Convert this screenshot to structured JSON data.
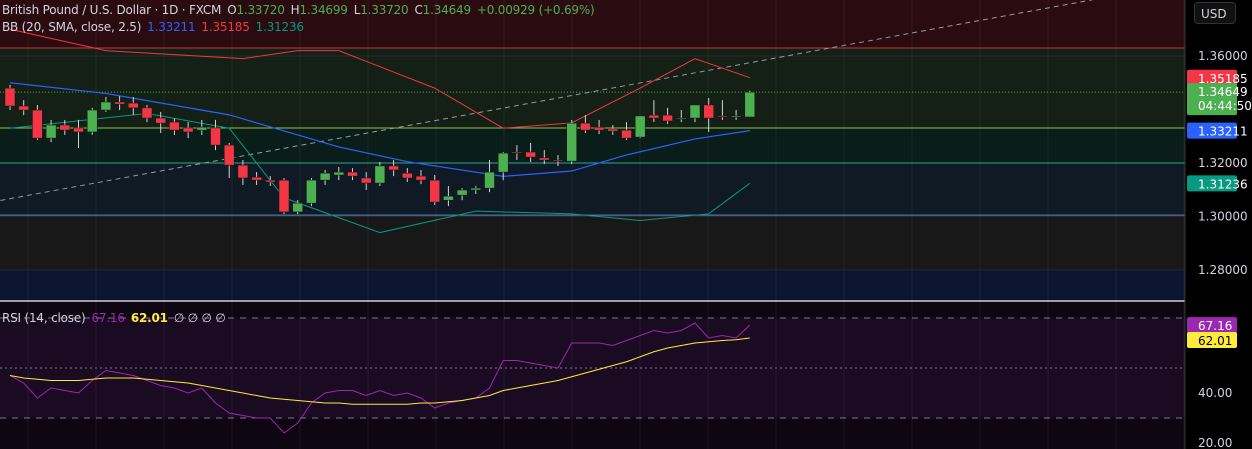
{
  "header": {
    "symbol": "British Pound / U.S. Dollar · 1D · FXCM",
    "open_label": "O",
    "open": "1.33720",
    "high_label": "H",
    "high": "1.34699",
    "low_label": "L",
    "low": "1.33720",
    "close_label": "C",
    "close": "1.34649",
    "change": "+0.00929 (+0.69%)"
  },
  "bb_legend": {
    "label": "BB (20, SMA, close, 2.5)",
    "basis": "1.33211",
    "upper": "1.35185",
    "lower": "1.31236"
  },
  "rsi_legend": {
    "label": "RSI (14, close)",
    "rsi": "67.16",
    "ma": "62.01",
    "extra": "∅ ∅ ∅ ∅"
  },
  "currency_button": "USD",
  "price_tags": {
    "upper": "1.35185",
    "last": "1.34649",
    "countdown": "04:44:50",
    "basis": "1.33211",
    "lower": "1.31236",
    "rsi": "67.16",
    "rsi_ma": "62.01"
  },
  "colors": {
    "up": "#4caf50",
    "down": "#f23645",
    "basis": "#2962ff",
    "upper": "#f23645",
    "lower": "#089981",
    "rsi": "#9c27b0",
    "rsi_ma": "#ffeb3b"
  },
  "chart_data": [
    {
      "type": "candlestick",
      "title": "British Pound / U.S. Dollar · 1D · FXCM",
      "ylim": [
        1.27,
        1.38
      ],
      "yticks": [
        "1.36000",
        "1.32000",
        "1.30000",
        "1.28000"
      ],
      "ytick_values": [
        1.36,
        1.32,
        1.3,
        1.28
      ],
      "ohlc": [
        [
          1.348,
          1.3492,
          1.3398,
          1.3413
        ],
        [
          1.3413,
          1.3435,
          1.3379,
          1.3398
        ],
        [
          1.3398,
          1.3417,
          1.3286,
          1.3293
        ],
        [
          1.3293,
          1.3361,
          1.3278,
          1.3342
        ],
        [
          1.3342,
          1.3361,
          1.3305,
          1.3323
        ],
        [
          1.3331,
          1.3361,
          1.3256,
          1.3316
        ],
        [
          1.3316,
          1.3406,
          1.3305,
          1.3398
        ],
        [
          1.3398,
          1.3447,
          1.3391,
          1.3428
        ],
        [
          1.3428,
          1.345,
          1.3398,
          1.342
        ],
        [
          1.3424,
          1.3447,
          1.3379,
          1.3406
        ],
        [
          1.3406,
          1.3417,
          1.3353,
          1.3368
        ],
        [
          1.3368,
          1.3391,
          1.3312,
          1.3349
        ],
        [
          1.3353,
          1.3368,
          1.3305,
          1.3323
        ],
        [
          1.3331,
          1.3353,
          1.3293,
          1.3316
        ],
        [
          1.3323,
          1.3361,
          1.3305,
          1.3334
        ],
        [
          1.3331,
          1.3361,
          1.3248,
          1.3267
        ],
        [
          1.3267,
          1.3275,
          1.3144,
          1.3192
        ],
        [
          1.3192,
          1.3211,
          1.3118,
          1.3144
        ],
        [
          1.3147,
          1.3166,
          1.3118,
          1.3136
        ],
        [
          1.3136,
          1.3151,
          1.3114,
          1.3129
        ],
        [
          1.3136,
          1.3144,
          1.3009,
          1.3017
        ],
        [
          1.3017,
          1.3061,
          1.3009,
          1.305
        ],
        [
          1.305,
          1.3144,
          1.3039,
          1.3136
        ],
        [
          1.3136,
          1.3174,
          1.3118,
          1.3162
        ],
        [
          1.3155,
          1.3185,
          1.3136,
          1.3166
        ],
        [
          1.3166,
          1.3181,
          1.3136,
          1.3151
        ],
        [
          1.3144,
          1.3166,
          1.3099,
          1.3125
        ],
        [
          1.3125,
          1.3204,
          1.3114,
          1.3189
        ],
        [
          1.3189,
          1.3211,
          1.3151,
          1.3174
        ],
        [
          1.3162,
          1.3181,
          1.3129,
          1.3144
        ],
        [
          1.3151,
          1.3174,
          1.3121,
          1.3136
        ],
        [
          1.3136,
          1.3155,
          1.3043,
          1.3054
        ],
        [
          1.3061,
          1.3114,
          1.3039,
          1.3076
        ],
        [
          1.308,
          1.3106,
          1.3061,
          1.3099
        ],
        [
          1.3099,
          1.3114,
          1.3084,
          1.3106
        ],
        [
          1.3106,
          1.3211,
          1.3091,
          1.3166
        ],
        [
          1.3166,
          1.3241,
          1.3136,
          1.3237
        ],
        [
          1.3241,
          1.3267,
          1.3211,
          1.3237
        ],
        [
          1.3241,
          1.3275,
          1.3204,
          1.3222
        ],
        [
          1.3219,
          1.3248,
          1.3196,
          1.3211
        ],
        [
          1.3211,
          1.323,
          1.3189,
          1.3207
        ],
        [
          1.3207,
          1.3361,
          1.3196,
          1.3349
        ],
        [
          1.3349,
          1.3379,
          1.3312,
          1.3323
        ],
        [
          1.3334,
          1.3361,
          1.3308,
          1.3323
        ],
        [
          1.3327,
          1.3342,
          1.3305,
          1.3319
        ],
        [
          1.3323,
          1.3353,
          1.3286,
          1.3293
        ],
        [
          1.3297,
          1.3376,
          1.3293,
          1.3376
        ],
        [
          1.3379,
          1.3435,
          1.3353,
          1.3368
        ],
        [
          1.3379,
          1.3406,
          1.3346,
          1.3357
        ],
        [
          1.3368,
          1.3398,
          1.3353,
          1.3368
        ],
        [
          1.3368,
          1.3417,
          1.3353,
          1.3417
        ],
        [
          1.3417,
          1.3443,
          1.3316,
          1.3368
        ],
        [
          1.3376,
          1.3435,
          1.3361,
          1.3372
        ],
        [
          1.3372,
          1.3398,
          1.3361,
          1.3376
        ],
        [
          1.3372,
          1.347,
          1.3372,
          1.3465
        ]
      ],
      "bollinger": {
        "upper": [
          [
            0,
            1.37
          ],
          [
            7,
            1.362
          ],
          [
            17,
            1.359
          ],
          [
            21,
            1.362
          ],
          [
            24,
            1.362
          ],
          [
            31,
            1.348
          ],
          [
            36,
            1.333
          ],
          [
            41,
            1.335
          ],
          [
            46,
            1.348
          ],
          [
            50,
            1.359
          ],
          [
            54,
            1.3519
          ]
        ],
        "basis": [
          [
            0,
            1.35
          ],
          [
            7,
            1.346
          ],
          [
            16,
            1.338
          ],
          [
            24,
            1.326
          ],
          [
            29,
            1.3205
          ],
          [
            36,
            1.315
          ],
          [
            41,
            1.317
          ],
          [
            45,
            1.323
          ],
          [
            50,
            1.329
          ],
          [
            54,
            1.3321
          ]
        ],
        "lower": [
          [
            0,
            1.333
          ],
          [
            10,
            1.3385
          ],
          [
            16,
            1.333
          ],
          [
            20,
            1.307
          ],
          [
            27,
            1.294
          ],
          [
            34,
            1.302
          ],
          [
            41,
            1.301
          ],
          [
            46,
            1.2985
          ],
          [
            51,
            1.301
          ],
          [
            54,
            1.3124
          ]
        ]
      },
      "horizontal_levels": [
        1.363,
        1.3465,
        1.3331,
        1.32,
        1.3005
      ],
      "trend_line": [
        [
          -0.7,
          1.306
        ],
        [
          79,
          1.381
        ]
      ]
    },
    {
      "type": "line",
      "title": "RSI (14, close)",
      "ylim": [
        17,
        78
      ],
      "yticks": [
        "40.00",
        "20.00"
      ],
      "ytick_values": [
        40,
        20
      ],
      "bands": [
        70,
        50,
        30
      ],
      "series": [
        {
          "name": "RSI",
          "values": [
            47,
            44,
            38,
            42,
            41,
            40,
            45,
            49,
            48,
            47,
            45,
            43,
            42,
            40,
            42,
            36,
            32,
            31,
            30,
            30,
            24,
            28,
            36,
            40,
            41,
            41,
            39,
            41,
            39,
            40,
            38,
            34,
            36,
            37,
            38,
            42,
            53,
            53,
            52,
            51,
            50,
            60,
            60,
            60,
            59,
            61,
            63,
            65,
            64,
            65,
            68,
            62,
            63,
            62,
            67.16
          ]
        },
        {
          "name": "RSI MA",
          "values": [
            47,
            46,
            45.5,
            45,
            45,
            45,
            45.5,
            46,
            46,
            46,
            45.5,
            45,
            44.5,
            44,
            43,
            42,
            41,
            40,
            39,
            38,
            37.5,
            37,
            36.5,
            36,
            36,
            35.5,
            35.5,
            35.5,
            35.5,
            35.5,
            36,
            36,
            36.5,
            37,
            38,
            39,
            41,
            42,
            43,
            44,
            45,
            46.5,
            48,
            49.5,
            51,
            52.5,
            54.5,
            56.5,
            58,
            59,
            60,
            60.5,
            61,
            61.3,
            62.01
          ]
        }
      ]
    }
  ]
}
